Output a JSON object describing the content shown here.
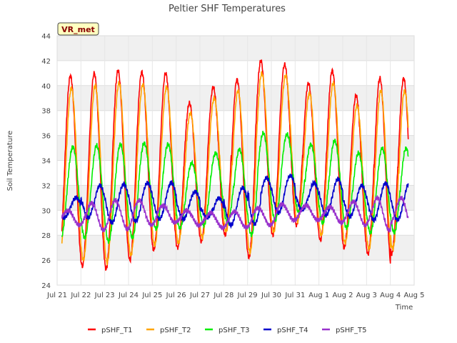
{
  "chart_data": {
    "type": "line",
    "title": "Peltier SHF Temperatures",
    "xlabel": "Time",
    "ylabel": "Soil Temperature",
    "annotation": "VR_met",
    "ylim": [
      24,
      44
    ],
    "yticks": [
      24,
      26,
      28,
      30,
      32,
      34,
      36,
      38,
      40,
      42,
      44
    ],
    "xlim": [
      0,
      15
    ],
    "xticks": [
      {
        "x": 0,
        "label": "Jul 21"
      },
      {
        "x": 1,
        "label": "Jul 22"
      },
      {
        "x": 2,
        "label": "Jul 23"
      },
      {
        "x": 3,
        "label": "Jul 24"
      },
      {
        "x": 4,
        "label": "Jul 25"
      },
      {
        "x": 5,
        "label": "Jul 26"
      },
      {
        "x": 6,
        "label": "Jul 27"
      },
      {
        "x": 7,
        "label": "Jul 28"
      },
      {
        "x": 8,
        "label": "Jul 29"
      },
      {
        "x": 9,
        "label": "Jul 30"
      },
      {
        "x": 10,
        "label": "Jul 31"
      },
      {
        "x": 11,
        "label": "Aug 1"
      },
      {
        "x": 12,
        "label": "Aug 2"
      },
      {
        "x": 13,
        "label": "Aug 3"
      },
      {
        "x": 14,
        "label": "Aug 4"
      },
      {
        "x": 15,
        "label": "Aug 5"
      }
    ],
    "grid": true,
    "legend_position": "bottom",
    "series": [
      {
        "name": "pSHF_T1",
        "color": "#ff0000",
        "phase": 0.56,
        "daily_max": [
          40.8,
          41.0,
          41.2,
          41.1,
          41.0,
          38.6,
          39.9,
          40.5,
          42.0,
          41.7,
          40.2,
          41.2,
          39.2,
          40.6
        ],
        "daily_min": [
          25.5,
          25.3,
          26.0,
          26.8,
          27.0,
          27.5,
          28.0,
          26.2,
          28.0,
          28.8,
          27.6,
          27.0,
          26.5,
          25.3
        ]
      },
      {
        "name": "pSHF_T2",
        "color": "#ffa500",
        "phase": 0.6,
        "daily_max": [
          39.8,
          40.0,
          40.2,
          40.1,
          39.9,
          37.8,
          39.0,
          39.6,
          41.0,
          40.8,
          39.4,
          40.2,
          38.4,
          39.6
        ],
        "daily_min": [
          26.0,
          25.8,
          26.4,
          27.2,
          27.4,
          27.8,
          28.3,
          26.6,
          28.3,
          29.1,
          28.0,
          27.4,
          26.9,
          25.7
        ]
      },
      {
        "name": "pSHF_T3",
        "color": "#00ee00",
        "phase": 0.66,
        "daily_max": [
          35.1,
          35.2,
          35.3,
          35.4,
          35.3,
          33.8,
          34.6,
          34.9,
          36.2,
          36.1,
          35.3,
          35.6,
          34.6,
          35.0
        ],
        "daily_min": [
          27.8,
          27.5,
          27.8,
          28.5,
          28.6,
          28.8,
          29.0,
          28.0,
          29.2,
          29.8,
          29.0,
          28.6,
          28.2,
          27.8
        ]
      },
      {
        "name": "pSHF_T4",
        "color": "#0000cc",
        "phase": 0.8,
        "daily_max": [
          31.0,
          32.0,
          32.1,
          32.2,
          32.2,
          31.5,
          31.0,
          31.8,
          32.6,
          32.8,
          32.2,
          32.5,
          32.0,
          32.2
        ],
        "daily_min": [
          29.4,
          29.0,
          29.1,
          29.3,
          29.3,
          29.4,
          28.8,
          28.9,
          29.8,
          30.0,
          29.6,
          29.5,
          29.2,
          29.0
        ]
      },
      {
        "name": "pSHF_T5",
        "color": "#9932cc",
        "phase": 0.45,
        "daily_max": [
          30.0,
          30.6,
          30.8,
          30.8,
          30.4,
          30.0,
          29.8,
          29.9,
          30.2,
          30.5,
          30.4,
          30.3,
          30.7,
          31.0
        ],
        "daily_min": [
          28.8,
          28.4,
          28.5,
          28.8,
          29.0,
          28.8,
          28.6,
          28.6,
          28.8,
          29.2,
          29.2,
          29.0,
          28.8,
          28.4
        ]
      }
    ]
  }
}
